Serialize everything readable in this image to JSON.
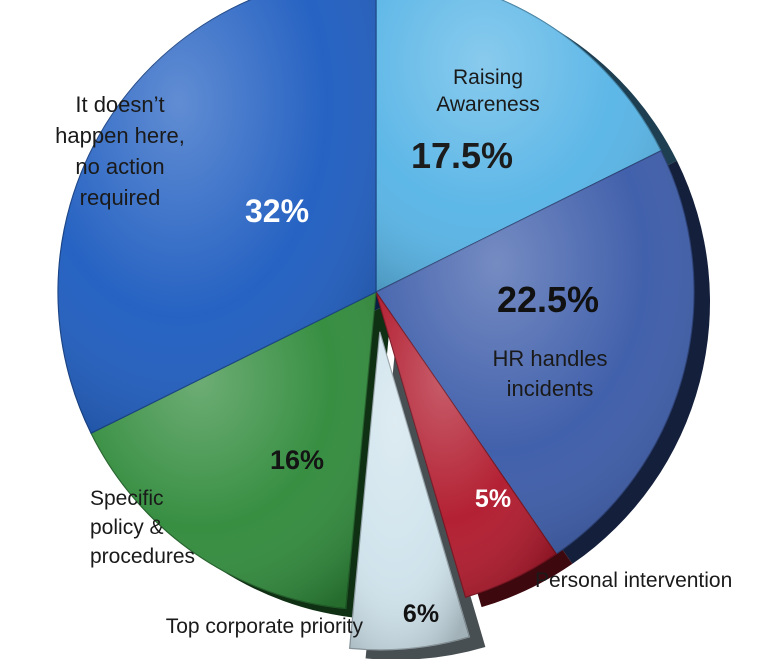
{
  "chart_data": {
    "type": "pie",
    "slices": [
      {
        "label": "Raising Awareness",
        "label_lines": [
          "Raising",
          "Awareness"
        ],
        "value": 17.5,
        "value_label": "17.5%",
        "color": "#56b4e6",
        "text_color": "#1c1c1c"
      },
      {
        "label": "HR handles incidents",
        "label_lines": [
          "HR handles",
          "incidents"
        ],
        "value": 22.5,
        "value_label": "22.5%",
        "color": "#3a5aa8",
        "text_color": "#111111"
      },
      {
        "label": "Personal intervention",
        "label_lines": [
          "Personal intervention"
        ],
        "value": 5,
        "value_label": "5%",
        "color": "#b0182b",
        "text_color": "#ffffff"
      },
      {
        "label": "Top corporate priority",
        "label_lines": [
          "Top corporate priority"
        ],
        "value": 6,
        "value_label": "6%",
        "color": "#cfe3ec",
        "text_color": "#111111",
        "exploded": true
      },
      {
        "label": "Specific policy & procedures",
        "label_lines": [
          "Specific",
          "policy &",
          "procedures"
        ],
        "value": 16,
        "value_label": "16%",
        "color": "#2f8a3a",
        "text_color": "#141414"
      },
      {
        "label": "It doesn't happen here, no action required",
        "label_lines": [
          "It doesn’t",
          "happen here,",
          "no action",
          "required"
        ],
        "value": 32,
        "value_label": "32%",
        "color": "#1d5cc0",
        "text_color": "#ffffff"
      }
    ]
  }
}
